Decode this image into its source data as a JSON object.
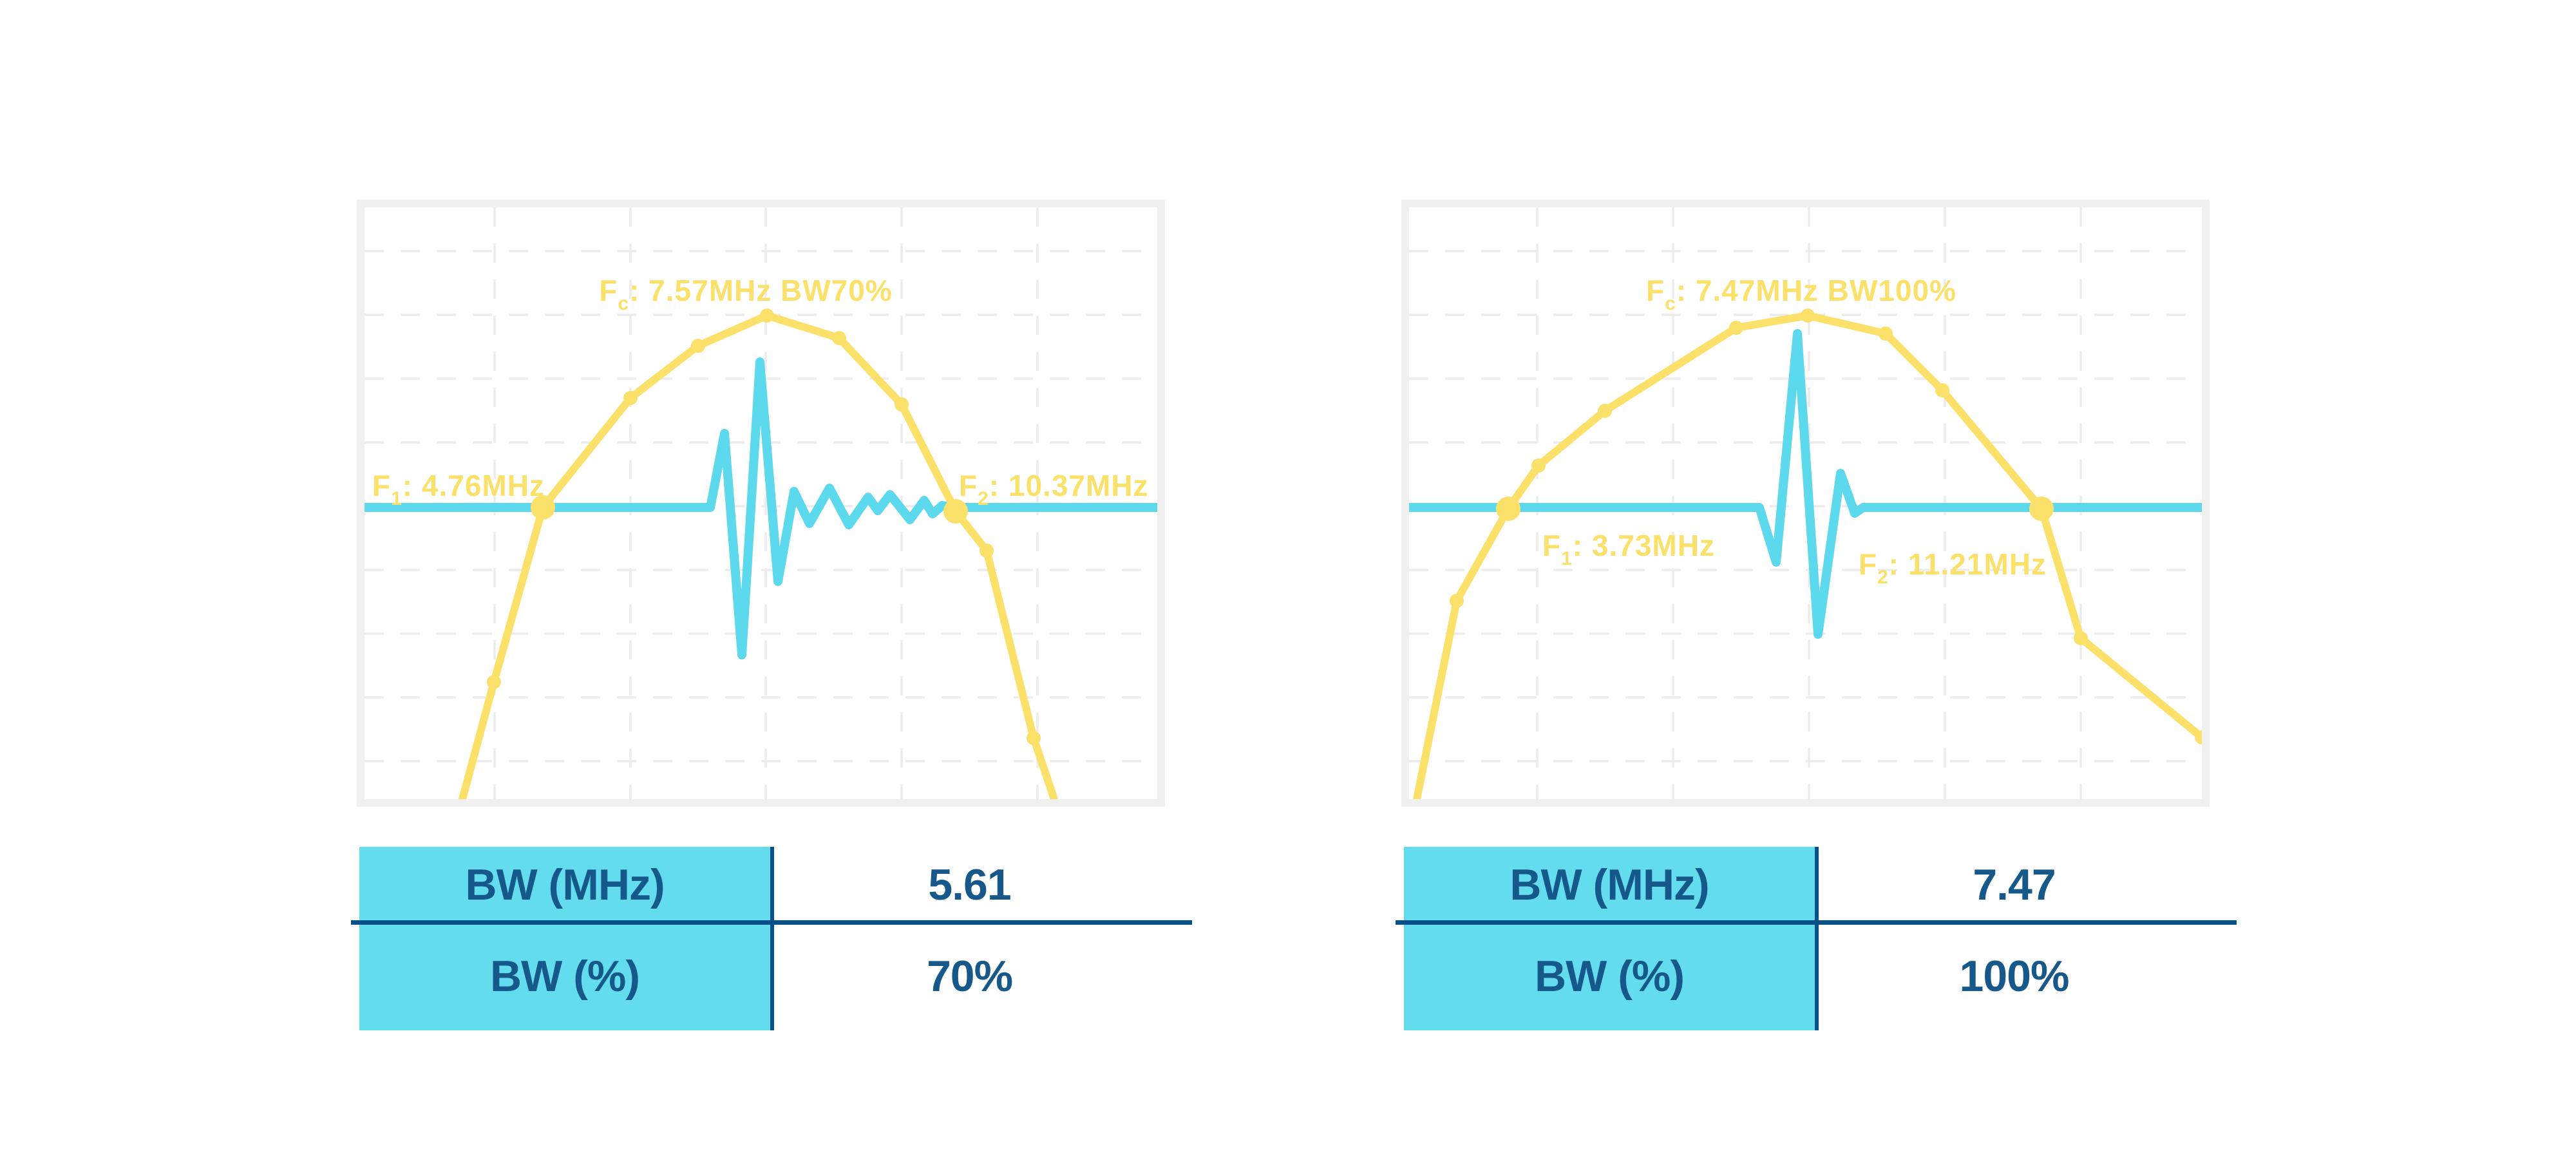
{
  "colors": {
    "yellow": "#FBE06A",
    "cyan": "#5CD9EC",
    "tablecyan": "#63DDEE",
    "navytext": "#155889",
    "navyline": "#07508A",
    "red": "#E85C52",
    "frame": "#F0F0F0",
    "grid": "#ECECEC",
    "topline": "#D8F1F8"
  },
  "charts": [
    {
      "labels": {
        "fc_f": "F",
        "fc_sub": "c",
        "fc_rest": ": 7.57MHz BW70%",
        "f1_f": "F",
        "f1_sub": "1",
        "f1_rest": ": 4.76MHz",
        "f2_f": "F",
        "f2_sub": "2",
        "f2_rest": ": 10.37MHz"
      },
      "table": {
        "rows": [
          {
            "label": "BW (MHz)",
            "value": "5.61"
          },
          {
            "label": "BW (%)",
            "value": "70%"
          }
        ]
      }
    },
    {
      "labels": {
        "fc_f": "F",
        "fc_sub": "c",
        "fc_rest": ": 7.47MHz BW100%",
        "f1_f": "F",
        "f1_sub": "1",
        "f1_rest": ": 3.73MHz",
        "f2_f": "F",
        "f2_sub": "2",
        "f2_rest": ": 11.21MHz"
      },
      "table": {
        "rows": [
          {
            "label": "BW (MHz)",
            "value": "7.47"
          },
          {
            "label": "BW (%)",
            "value": "100%"
          }
        ]
      }
    }
  ],
  "chart_data": [
    {
      "type": "line",
      "title": "Fc: 7.57MHz BW70%",
      "center_frequency_mhz": 7.57,
      "f1_mhz": 4.76,
      "f2_mhz": 10.37,
      "bandwidth_mhz": 5.61,
      "bandwidth_pct": 70,
      "xlabel": "frequency (MHz, unlabeled axis)",
      "ylabel": "relative amplitude (unlabeled axis)",
      "grid": "dashed, light gray, no tick labels",
      "legend": "none",
      "series": [
        {
          "name": "frequency spectrum (yellow, with point markers)",
          "x_mhz": [
            3.67,
            4.1,
            4.76,
            5.95,
            6.87,
            7.81,
            8.79,
            9.64,
            10.37,
            10.79,
            11.43,
            11.69
          ],
          "amplitude_rel": [
            0,
            0.24,
            0.6,
            0.83,
            0.94,
            1.0,
            0.95,
            0.82,
            0.6,
            0.52,
            0.13,
            0
          ]
        },
        {
          "name": "pulse-echo waveform (cyan)",
          "description": "horizontal threshold/baseline line at 0.60 relative amplitude passing through F1 and F2 markers, with a ringing pulse near center: small positive lobe, deep negative lobe, tall positive spike, then decaying oscillations toward F2"
        }
      ],
      "table": {
        "BW (MHz)": "5.61",
        "BW (%)": "70%"
      }
    },
    {
      "type": "line",
      "title": "Fc: 7.47MHz BW100%",
      "center_frequency_mhz": 7.47,
      "f1_mhz": 3.73,
      "f2_mhz": 11.21,
      "bandwidth_mhz": 7.47,
      "bandwidth_pct": 100,
      "xlabel": "frequency (MHz, unlabeled axis)",
      "ylabel": "relative amplitude (unlabeled axis)",
      "grid": "dashed, light gray, no tick labels",
      "legend": "none",
      "series": [
        {
          "name": "frequency spectrum (yellow, with point markers)",
          "x_mhz": [
            2.45,
            3.01,
            3.73,
            4.15,
            5.09,
            6.93,
            7.93,
            9.02,
            9.82,
            11.21,
            11.76,
            13.48
          ],
          "amplitude_rel": [
            0,
            0.41,
            0.6,
            0.69,
            0.8,
            0.97,
            1.0,
            0.96,
            0.85,
            0.6,
            0.34,
            0.13
          ]
        },
        {
          "name": "pulse-echo waveform (cyan)",
          "description": "horizontal threshold/baseline line at 0.60 relative amplitude passing through F1 and F2 markers, with a short broadband pulse near center: small negative lobe, tall positive spike, deep negative lobe, one positive rebound, quick settle"
        }
      ],
      "table": {
        "BW (MHz)": "7.47",
        "BW (%)": "100%"
      }
    }
  ],
  "geometry": {
    "grid_hy": [
      68,
      167,
      266,
      365,
      464,
      563,
      662,
      761,
      860
    ],
    "panels": [
      {
        "grid_vx": [
          202,
          413,
          623,
          834,
          1045
        ],
        "spectrum": [
          [
            152,
            919
          ],
          [
            201,
            737
          ],
          [
            277,
            466
          ],
          [
            413,
            296
          ],
          [
            518,
            215
          ],
          [
            625,
            168
          ],
          [
            737,
            203
          ],
          [
            834,
            306
          ],
          [
            918,
            472
          ],
          [
            966,
            533
          ],
          [
            1039,
            824
          ],
          [
            1071,
            919
          ]
        ],
        "marker_from": 1,
        "marker_to": 10,
        "big": [
          2,
          8
        ],
        "pulse": [
          [
            0,
            466
          ],
          [
            537,
            466
          ],
          [
            559,
            351
          ],
          [
            586,
            695
          ],
          [
            614,
            240
          ],
          [
            642,
            581
          ],
          [
            667,
            441
          ],
          [
            691,
            491
          ],
          [
            722,
            436
          ],
          [
            752,
            493
          ],
          [
            782,
            450
          ],
          [
            797,
            471
          ],
          [
            816,
            446
          ],
          [
            847,
            485
          ],
          [
            869,
            455
          ],
          [
            882,
            476
          ],
          [
            897,
            463
          ],
          [
            918,
            466
          ],
          [
            1231,
            466
          ]
        ]
      },
      {
        "grid_vx": [
          199,
          410,
          621,
          832,
          1043
        ],
        "spectrum": [
          [
            12,
            919
          ],
          [
            74,
            611
          ],
          [
            154,
            468
          ],
          [
            201,
            401
          ],
          [
            304,
            316
          ],
          [
            508,
            187
          ],
          [
            619,
            168
          ],
          [
            740,
            196
          ],
          [
            828,
            284
          ],
          [
            982,
            468
          ],
          [
            1043,
            669
          ],
          [
            1231,
            823
          ]
        ],
        "marker_from": 1,
        "marker_to": 11,
        "big": [
          2,
          9
        ],
        "pulse": [
          [
            0,
            466
          ],
          [
            544,
            466
          ],
          [
            570,
            551
          ],
          [
            603,
            196
          ],
          [
            635,
            663
          ],
          [
            670,
            413
          ],
          [
            692,
            475
          ],
          [
            705,
            466
          ],
          [
            1231,
            466
          ]
        ]
      }
    ]
  }
}
